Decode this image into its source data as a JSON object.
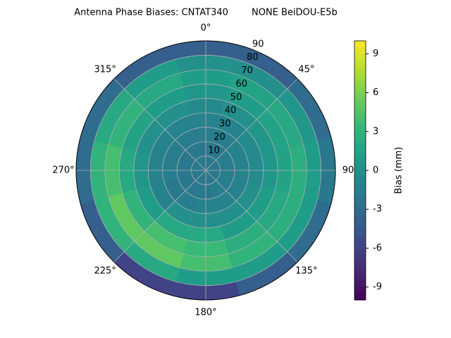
{
  "chart_data": {
    "type": "polar_contour",
    "title": "Antenna Phase Biases: CNTAT340        NONE BeiDOU-E5b",
    "azimuths": [
      0,
      30,
      60,
      90,
      120,
      150,
      180,
      210,
      240,
      270,
      300,
      330
    ],
    "zenith": [
      5,
      15,
      25,
      35,
      45,
      55,
      65,
      75,
      85
    ],
    "values": [
      [
        -2,
        -2,
        -1.5,
        -1,
        -0.5,
        0.5,
        1,
        0,
        -4
      ],
      [
        -2,
        -2,
        -1.5,
        -1,
        0,
        1,
        1.5,
        0,
        -4
      ],
      [
        -2,
        -1.5,
        -1,
        -0.5,
        0.5,
        1.5,
        2,
        0.5,
        -3
      ],
      [
        -2,
        -1.5,
        -1,
        -0.5,
        0.5,
        1.5,
        2.5,
        1,
        -2
      ],
      [
        -2,
        -1.5,
        -1,
        0,
        1,
        2,
        2.5,
        1,
        -3
      ],
      [
        -2,
        -1.5,
        -1,
        0,
        1,
        2.5,
        3,
        1,
        -4
      ],
      [
        -2,
        -2,
        -1,
        0,
        2,
        3.5,
        4,
        1,
        -6
      ],
      [
        -2,
        -2,
        -1.5,
        0,
        2,
        4,
        5,
        2,
        -6
      ],
      [
        -2,
        -2,
        -2,
        -1,
        1,
        3,
        5,
        3,
        -4
      ],
      [
        -2,
        -2,
        -1.5,
        -1,
        0.5,
        2,
        4,
        3,
        -3
      ],
      [
        -2,
        -2,
        -1.5,
        -1,
        0,
        1.5,
        3,
        2,
        -3
      ],
      [
        -2,
        -2,
        -1.5,
        -1,
        0,
        1,
        2,
        1,
        -4
      ]
    ],
    "thetaticks": [
      {
        "value": 0,
        "label": "0°"
      },
      {
        "value": 45,
        "label": "45°"
      },
      {
        "value": 90,
        "label": "90"
      },
      {
        "value": 135,
        "label": "135°"
      },
      {
        "value": 180,
        "label": "180°"
      },
      {
        "value": 225,
        "label": "225°"
      },
      {
        "value": 270,
        "label": "270°"
      },
      {
        "value": 315,
        "label": "315°"
      }
    ],
    "rlim": [
      0,
      90
    ],
    "rticks": [
      10,
      20,
      30,
      40,
      50,
      60,
      70,
      80,
      90
    ],
    "clim": [
      -10,
      10
    ],
    "cticks": [
      -9,
      -6,
      -3,
      0,
      3,
      6,
      9
    ],
    "colorbar_label": "Bias (mm)",
    "colormap": "viridis",
    "grid": true
  }
}
